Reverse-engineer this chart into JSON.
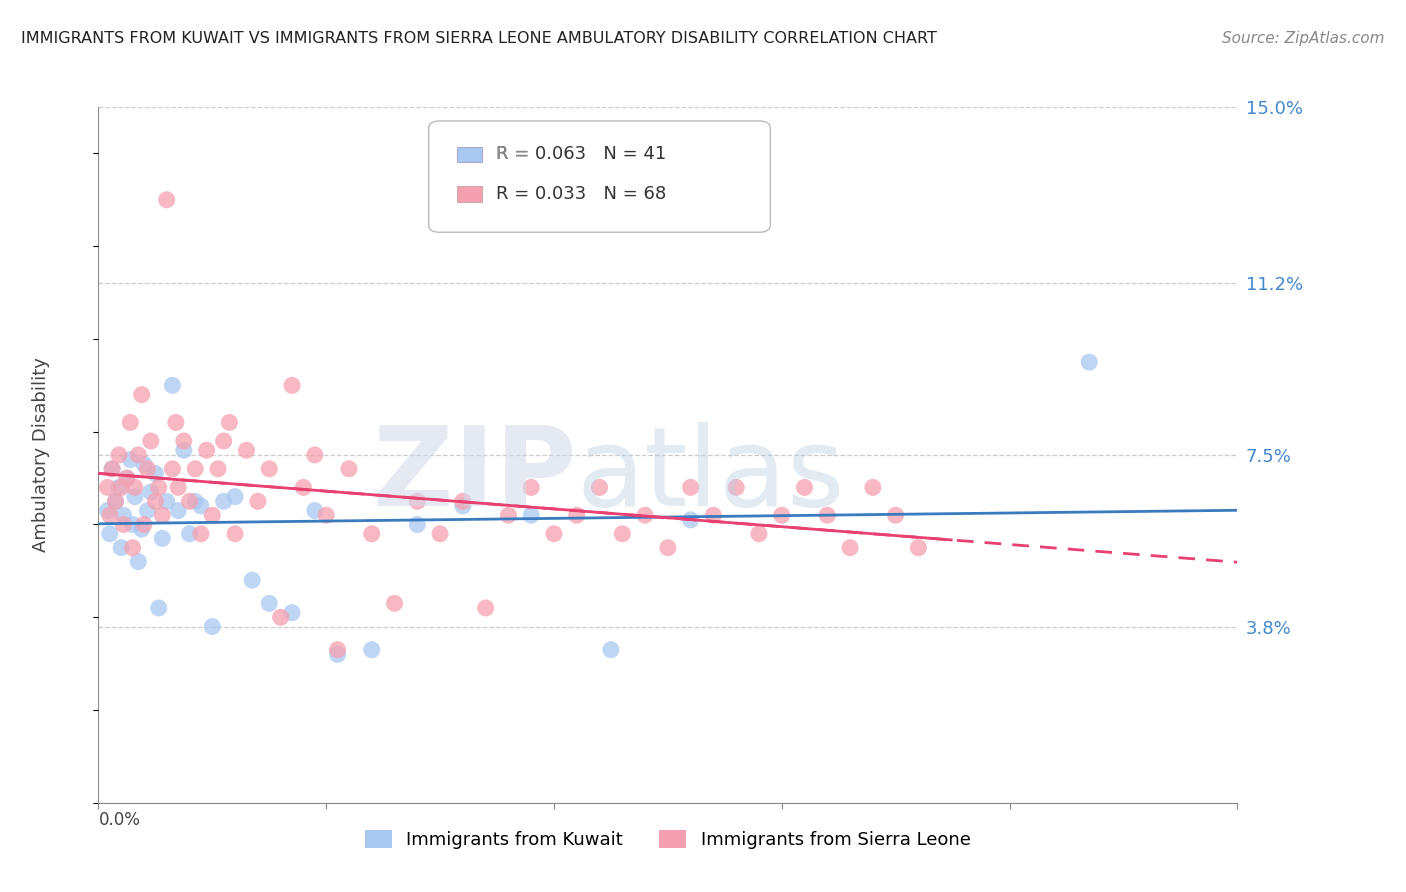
{
  "title": "IMMIGRANTS FROM KUWAIT VS IMMIGRANTS FROM SIERRA LEONE AMBULATORY DISABILITY CORRELATION CHART",
  "source": "Source: ZipAtlas.com",
  "ylabel": "Ambulatory Disability",
  "xlim": [
    0.0,
    0.1
  ],
  "ylim": [
    0.0,
    0.15
  ],
  "yticks": [
    0.038,
    0.075,
    0.112,
    0.15
  ],
  "ytick_labels": [
    "3.8%",
    "7.5%",
    "11.2%",
    "15.0%"
  ],
  "legend1_label": "R = 0.063   N = 41",
  "legend2_label": "R = 0.033   N = 68",
  "color_kuwait": "#a8c8f0",
  "color_sierra": "#f5a0b0",
  "color_kuwait_line": "#3a7abf",
  "color_sierra_line": "#e84070",
  "kuwait_x": [
    0.0008,
    0.001,
    0.0012,
    0.0015,
    0.0018,
    0.002,
    0.0022,
    0.0025,
    0.0028,
    0.003,
    0.0032,
    0.0035,
    0.0038,
    0.004,
    0.0043,
    0.0046,
    0.005,
    0.0053,
    0.0056,
    0.006,
    0.0065,
    0.007,
    0.0075,
    0.008,
    0.0085,
    0.009,
    0.01,
    0.011,
    0.012,
    0.0135,
    0.015,
    0.017,
    0.019,
    0.021,
    0.024,
    0.028,
    0.032,
    0.038,
    0.045,
    0.052,
    0.087
  ],
  "kuwait_y": [
    0.063,
    0.058,
    0.072,
    0.065,
    0.068,
    0.055,
    0.062,
    0.07,
    0.074,
    0.06,
    0.066,
    0.052,
    0.059,
    0.073,
    0.063,
    0.067,
    0.071,
    0.042,
    0.057,
    0.065,
    0.09,
    0.063,
    0.076,
    0.058,
    0.065,
    0.064,
    0.038,
    0.065,
    0.066,
    0.048,
    0.043,
    0.041,
    0.063,
    0.032,
    0.033,
    0.06,
    0.064,
    0.062,
    0.033,
    0.061,
    0.095
  ],
  "sierra_x": [
    0.0008,
    0.001,
    0.0012,
    0.0015,
    0.0018,
    0.002,
    0.0022,
    0.0025,
    0.0028,
    0.003,
    0.0032,
    0.0035,
    0.0038,
    0.004,
    0.0043,
    0.0046,
    0.005,
    0.0053,
    0.0056,
    0.006,
    0.0065,
    0.0068,
    0.007,
    0.0075,
    0.008,
    0.0085,
    0.009,
    0.0095,
    0.01,
    0.0105,
    0.011,
    0.0115,
    0.012,
    0.013,
    0.014,
    0.015,
    0.016,
    0.017,
    0.018,
    0.019,
    0.02,
    0.021,
    0.022,
    0.024,
    0.026,
    0.028,
    0.03,
    0.032,
    0.034,
    0.036,
    0.038,
    0.04,
    0.042,
    0.044,
    0.046,
    0.048,
    0.05,
    0.052,
    0.054,
    0.056,
    0.058,
    0.06,
    0.062,
    0.064,
    0.066,
    0.068,
    0.07,
    0.072
  ],
  "sierra_y": [
    0.068,
    0.062,
    0.072,
    0.065,
    0.075,
    0.068,
    0.06,
    0.07,
    0.082,
    0.055,
    0.068,
    0.075,
    0.088,
    0.06,
    0.072,
    0.078,
    0.065,
    0.068,
    0.062,
    0.13,
    0.072,
    0.082,
    0.068,
    0.078,
    0.065,
    0.072,
    0.058,
    0.076,
    0.062,
    0.072,
    0.078,
    0.082,
    0.058,
    0.076,
    0.065,
    0.072,
    0.04,
    0.09,
    0.068,
    0.075,
    0.062,
    0.033,
    0.072,
    0.058,
    0.043,
    0.065,
    0.058,
    0.065,
    0.042,
    0.062,
    0.068,
    0.058,
    0.062,
    0.068,
    0.058,
    0.062,
    0.055,
    0.068,
    0.062,
    0.068,
    0.058,
    0.062,
    0.068,
    0.062,
    0.055,
    0.068,
    0.062,
    0.055
  ]
}
